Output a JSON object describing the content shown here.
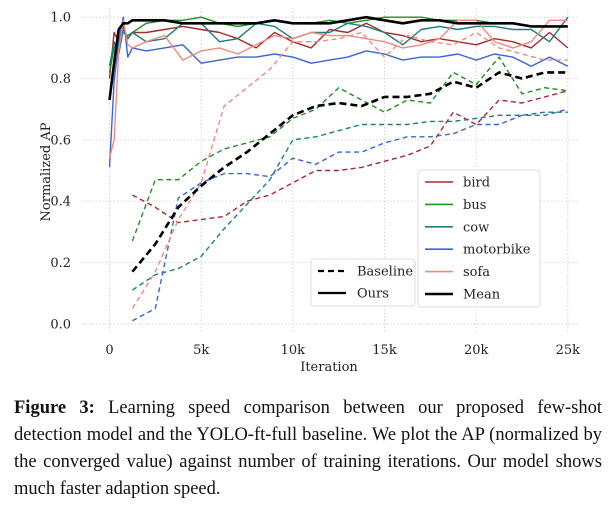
{
  "chart_data": {
    "type": "line",
    "xlabel": "Iteration",
    "ylabel": "Normalized AP",
    "xlim": [
      -1500,
      25500
    ],
    "ylim": [
      -0.03,
      1.03
    ],
    "xticks": [
      0,
      5000,
      10000,
      15000,
      20000,
      25000
    ],
    "xtick_labels": [
      "0",
      "5k",
      "10k",
      "15k",
      "20k",
      "25k"
    ],
    "yticks": [
      0.0,
      0.2,
      0.4,
      0.6,
      0.8,
      1.0
    ],
    "ytick_labels": [
      "0.0",
      "0.2",
      "0.4",
      "0.6",
      "0.8",
      "1.0"
    ],
    "grid": true,
    "colors": {
      "bird": "#a52a2a",
      "bus": "#1f8f1f",
      "cow": "#1c7f7a",
      "motorbike": "#3b63d6",
      "sofa": "#f08a80",
      "Mean": "#000000"
    },
    "series": [
      {
        "name": "bird",
        "style": "solid",
        "x": [
          0,
          250,
          500,
          750,
          1000,
          1250,
          2000,
          3000,
          4000,
          5000,
          6000,
          7000,
          8000,
          9000,
          10000,
          11000,
          12000,
          13000,
          14000,
          15000,
          16000,
          17000,
          18000,
          19000,
          20000,
          21000,
          22000,
          23000,
          24000,
          25000
        ],
        "y": [
          0.8,
          0.95,
          0.92,
          0.97,
          0.93,
          0.95,
          0.95,
          0.96,
          0.97,
          0.96,
          0.95,
          0.93,
          0.9,
          0.95,
          0.92,
          0.9,
          0.96,
          0.95,
          0.98,
          0.95,
          0.94,
          0.92,
          0.93,
          0.92,
          0.91,
          0.93,
          0.92,
          0.9,
          0.95,
          0.9
        ]
      },
      {
        "name": "bus",
        "style": "solid",
        "x": [
          0,
          250,
          500,
          750,
          1000,
          1250,
          2000,
          3000,
          4000,
          5000,
          6000,
          7000,
          8000,
          9000,
          10000,
          11000,
          12000,
          13000,
          14000,
          15000,
          16000,
          17000,
          18000,
          19000,
          20000,
          21000,
          22000,
          23000,
          24000,
          25000
        ],
        "y": [
          0.82,
          0.9,
          0.93,
          0.95,
          0.94,
          0.95,
          0.98,
          0.99,
          0.99,
          1.0,
          0.98,
          0.97,
          0.98,
          0.99,
          0.98,
          0.98,
          0.99,
          0.98,
          0.99,
          1.0,
          1.0,
          1.0,
          0.99,
          0.99,
          0.99,
          0.98,
          0.98,
          0.97,
          0.97,
          0.97
        ]
      },
      {
        "name": "cow",
        "style": "solid",
        "x": [
          0,
          250,
          500,
          750,
          1000,
          1250,
          2000,
          3000,
          4000,
          5000,
          6000,
          7000,
          8000,
          9000,
          10000,
          11000,
          12000,
          13000,
          14000,
          15000,
          16000,
          17000,
          18000,
          19000,
          20000,
          21000,
          22000,
          23000,
          24000,
          25000
        ],
        "y": [
          0.84,
          0.92,
          0.88,
          0.96,
          0.93,
          0.95,
          0.92,
          0.93,
          0.98,
          0.98,
          0.92,
          0.93,
          0.98,
          0.97,
          0.93,
          0.95,
          0.95,
          0.98,
          0.97,
          0.95,
          0.91,
          0.96,
          0.97,
          0.96,
          0.97,
          0.97,
          0.96,
          0.96,
          0.92,
          1.0
        ]
      },
      {
        "name": "motorbike",
        "style": "solid",
        "x": [
          0,
          250,
          500,
          750,
          1000,
          1250,
          2000,
          3000,
          4000,
          5000,
          6000,
          7000,
          8000,
          9000,
          10000,
          11000,
          12000,
          13000,
          14000,
          15000,
          16000,
          17000,
          18000,
          19000,
          20000,
          21000,
          22000,
          23000,
          24000,
          25000
        ],
        "y": [
          0.51,
          0.79,
          0.92,
          1.0,
          0.87,
          0.9,
          0.89,
          0.9,
          0.91,
          0.85,
          0.86,
          0.87,
          0.87,
          0.88,
          0.87,
          0.85,
          0.86,
          0.87,
          0.89,
          0.88,
          0.86,
          0.87,
          0.87,
          0.88,
          0.86,
          0.88,
          0.87,
          0.84,
          0.87,
          0.84
        ]
      },
      {
        "name": "sofa",
        "style": "solid",
        "x": [
          0,
          250,
          500,
          750,
          1000,
          1250,
          2000,
          3000,
          4000,
          5000,
          6000,
          7000,
          8000,
          9000,
          10000,
          11000,
          12000,
          13000,
          14000,
          15000,
          16000,
          17000,
          18000,
          19000,
          20000,
          21000,
          22000,
          23000,
          24000,
          25000
        ],
        "y": [
          0.54,
          0.6,
          0.89,
          0.99,
          0.91,
          0.9,
          0.92,
          0.94,
          0.86,
          0.89,
          0.9,
          0.88,
          0.91,
          0.94,
          0.93,
          0.95,
          0.94,
          0.94,
          0.93,
          0.92,
          0.9,
          0.91,
          0.93,
          0.99,
          0.99,
          0.92,
          0.9,
          0.92,
          0.99,
          0.99
        ]
      },
      {
        "name": "Mean",
        "style": "solid",
        "x": [
          0,
          250,
          500,
          750,
          1000,
          1250,
          2000,
          3000,
          4000,
          5000,
          6000,
          7000,
          8000,
          9000,
          10000,
          11000,
          12000,
          13000,
          14000,
          15000,
          16000,
          17000,
          18000,
          19000,
          20000,
          21000,
          22000,
          23000,
          24000,
          25000
        ],
        "y": [
          0.73,
          0.85,
          0.96,
          0.98,
          0.98,
          0.99,
          0.99,
          0.99,
          0.98,
          0.98,
          0.98,
          0.98,
          0.98,
          0.99,
          0.98,
          0.98,
          0.98,
          0.99,
          1.0,
          0.99,
          0.98,
          0.99,
          0.99,
          0.98,
          0.98,
          0.98,
          0.98,
          0.97,
          0.97,
          0.97
        ]
      },
      {
        "name": "bird",
        "style": "dashed",
        "x": [
          1250,
          2500,
          3750,
          5000,
          6250,
          7500,
          8750,
          10000,
          11250,
          12500,
          13750,
          15000,
          16250,
          17500,
          18750,
          20000,
          21250,
          22500,
          23750,
          25000
        ],
        "y": [
          0.42,
          0.38,
          0.33,
          0.34,
          0.35,
          0.4,
          0.42,
          0.46,
          0.5,
          0.5,
          0.51,
          0.53,
          0.55,
          0.58,
          0.69,
          0.65,
          0.73,
          0.72,
          0.74,
          0.76
        ]
      },
      {
        "name": "bus",
        "style": "dashed",
        "x": [
          1250,
          2500,
          3750,
          5000,
          6250,
          7500,
          8750,
          10000,
          11250,
          12500,
          13750,
          15000,
          16250,
          17500,
          18750,
          20000,
          21250,
          22500,
          23750,
          25000
        ],
        "y": [
          0.27,
          0.47,
          0.47,
          0.53,
          0.57,
          0.59,
          0.61,
          0.67,
          0.7,
          0.77,
          0.73,
          0.69,
          0.73,
          0.72,
          0.82,
          0.78,
          0.87,
          0.75,
          0.77,
          0.76
        ]
      },
      {
        "name": "cow",
        "style": "dashed",
        "x": [
          1250,
          2500,
          3750,
          5000,
          6250,
          7500,
          8750,
          10000,
          11250,
          12500,
          13750,
          15000,
          16250,
          17500,
          18750,
          20000,
          21250,
          22500,
          23750,
          25000
        ],
        "y": [
          0.11,
          0.16,
          0.18,
          0.22,
          0.31,
          0.39,
          0.47,
          0.6,
          0.61,
          0.63,
          0.65,
          0.65,
          0.65,
          0.66,
          0.66,
          0.67,
          0.68,
          0.68,
          0.69,
          0.69
        ]
      },
      {
        "name": "motorbike",
        "style": "dashed",
        "x": [
          1250,
          2500,
          3750,
          5000,
          6250,
          7500,
          8750,
          10000,
          11250,
          12500,
          13750,
          15000,
          16250,
          17500,
          18750,
          20000,
          21250,
          22500,
          23750,
          25000
        ],
        "y": [
          0.01,
          0.05,
          0.41,
          0.46,
          0.49,
          0.49,
          0.48,
          0.54,
          0.52,
          0.56,
          0.56,
          0.59,
          0.61,
          0.61,
          0.62,
          0.65,
          0.65,
          0.68,
          0.68,
          0.7
        ]
      },
      {
        "name": "sofa",
        "style": "dashed",
        "x": [
          1250,
          2500,
          3750,
          5000,
          6250,
          7500,
          8750,
          10000,
          11250,
          12500,
          13750,
          15000,
          16250,
          17500,
          18750,
          20000,
          21250,
          22500,
          23750,
          25000
        ],
        "y": [
          0.05,
          0.17,
          0.34,
          0.46,
          0.71,
          0.77,
          0.83,
          0.92,
          0.92,
          0.93,
          0.95,
          0.87,
          0.94,
          0.92,
          0.91,
          0.95,
          0.9,
          0.88,
          0.86,
          0.86
        ]
      },
      {
        "name": "Mean",
        "style": "dashed",
        "x": [
          1250,
          2500,
          3750,
          5000,
          6250,
          7500,
          8750,
          10000,
          11250,
          12500,
          13750,
          15000,
          16250,
          17500,
          18750,
          20000,
          21250,
          22500,
          23750,
          25000
        ],
        "y": [
          0.17,
          0.26,
          0.38,
          0.45,
          0.51,
          0.56,
          0.62,
          0.68,
          0.71,
          0.72,
          0.71,
          0.74,
          0.74,
          0.75,
          0.79,
          0.77,
          0.82,
          0.8,
          0.82,
          0.82
        ]
      }
    ],
    "legend_style": {
      "placement": "lower-right",
      "items": [
        {
          "label": "Baseline",
          "style": "dashed",
          "color": "#000000"
        },
        {
          "label": "Ours",
          "style": "solid",
          "color": "#000000"
        }
      ]
    },
    "legend_class": {
      "placement": "lower-right",
      "items": [
        {
          "label": "bird",
          "color": "#a52a2a"
        },
        {
          "label": "bus",
          "color": "#1f8f1f"
        },
        {
          "label": "cow",
          "color": "#1c7f7a"
        },
        {
          "label": "motorbike",
          "color": "#3b63d6"
        },
        {
          "label": "sofa",
          "color": "#f08a80"
        },
        {
          "label": "Mean",
          "color": "#000000"
        }
      ]
    }
  },
  "caption": {
    "label": "Figure 3:",
    "text": " Learning speed comparison between our proposed few-shot detection model and the YOLO-ft-full baseline. We plot the AP (normalized by the converged value) against number of training iterations. Our model shows much faster adaption speed."
  }
}
